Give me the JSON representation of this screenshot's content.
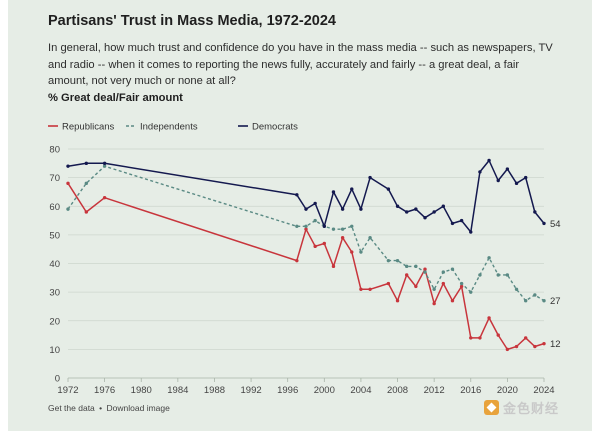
{
  "footer": {
    "get_data": "Get the data",
    "separator": "•",
    "download": "Download image"
  },
  "watermark": {
    "text": "金色财经"
  },
  "colors": {
    "republicans": "#c8353c",
    "independents": "#5a8a84",
    "democrats": "#14194f"
  },
  "chart_data": {
    "type": "line",
    "title": "Partisans' Trust in Mass Media, 1972-2024",
    "subtitle": "In general, how much trust and confidence do you have in the mass media -- such as newspapers, TV and radio -- when it comes to reporting the news fully, accurately and fairly -- a great deal, a fair amount, not very much or none at all?",
    "ylabel": "% Great deal/Fair amount",
    "ylim": [
      0,
      80
    ],
    "yticks": [
      0,
      10,
      20,
      30,
      40,
      50,
      60,
      70,
      80
    ],
    "xlim": [
      1972,
      2024
    ],
    "xticks": [
      "1972",
      "1976",
      "1980",
      "1984",
      "1988",
      "1992",
      "1996",
      "2000",
      "2004",
      "2008",
      "2012",
      "2016",
      "2020",
      "2024"
    ],
    "grid": true,
    "legend": "top-left",
    "series": [
      {
        "name": "Republicans",
        "style": "solid",
        "end_label": "12",
        "x": [
          1972,
          1974,
          1976,
          1997,
          1998,
          1999,
          2000,
          2001,
          2002,
          2003,
          2004,
          2005,
          2007,
          2008,
          2009,
          2010,
          2011,
          2012,
          2013,
          2014,
          2015,
          2016,
          2017,
          2018,
          2019,
          2020,
          2021,
          2022,
          2023,
          2024
        ],
        "values": [
          68,
          58,
          63,
          41,
          52,
          46,
          47,
          39,
          49,
          44,
          31,
          31,
          33,
          27,
          36,
          32,
          38,
          26,
          33,
          27,
          32,
          14,
          14,
          21,
          15,
          10,
          11,
          14,
          11,
          12
        ]
      },
      {
        "name": "Independents",
        "style": "dashed",
        "end_label": "27",
        "x": [
          1972,
          1974,
          1976,
          1997,
          1998,
          1999,
          2000,
          2001,
          2002,
          2003,
          2004,
          2005,
          2007,
          2008,
          2009,
          2010,
          2011,
          2012,
          2013,
          2014,
          2015,
          2016,
          2017,
          2018,
          2019,
          2020,
          2021,
          2022,
          2023,
          2024
        ],
        "values": [
          59,
          68,
          74,
          53,
          53,
          55,
          53,
          52,
          52,
          53,
          44,
          49,
          41,
          41,
          39,
          39,
          37,
          31,
          37,
          38,
          33,
          30,
          36,
          42,
          36,
          36,
          31,
          27,
          29,
          27
        ]
      },
      {
        "name": "Democrats",
        "style": "solid",
        "end_label": "54",
        "x": [
          1972,
          1974,
          1976,
          1997,
          1998,
          1999,
          2000,
          2001,
          2002,
          2003,
          2004,
          2005,
          2007,
          2008,
          2009,
          2010,
          2011,
          2012,
          2013,
          2014,
          2015,
          2016,
          2017,
          2018,
          2019,
          2020,
          2021,
          2022,
          2023,
          2024
        ],
        "values": [
          74,
          75,
          75,
          64,
          59,
          61,
          53,
          65,
          59,
          66,
          59,
          70,
          66,
          60,
          58,
          59,
          56,
          58,
          60,
          54,
          55,
          51,
          72,
          76,
          69,
          73,
          68,
          70,
          58,
          54
        ]
      }
    ]
  }
}
